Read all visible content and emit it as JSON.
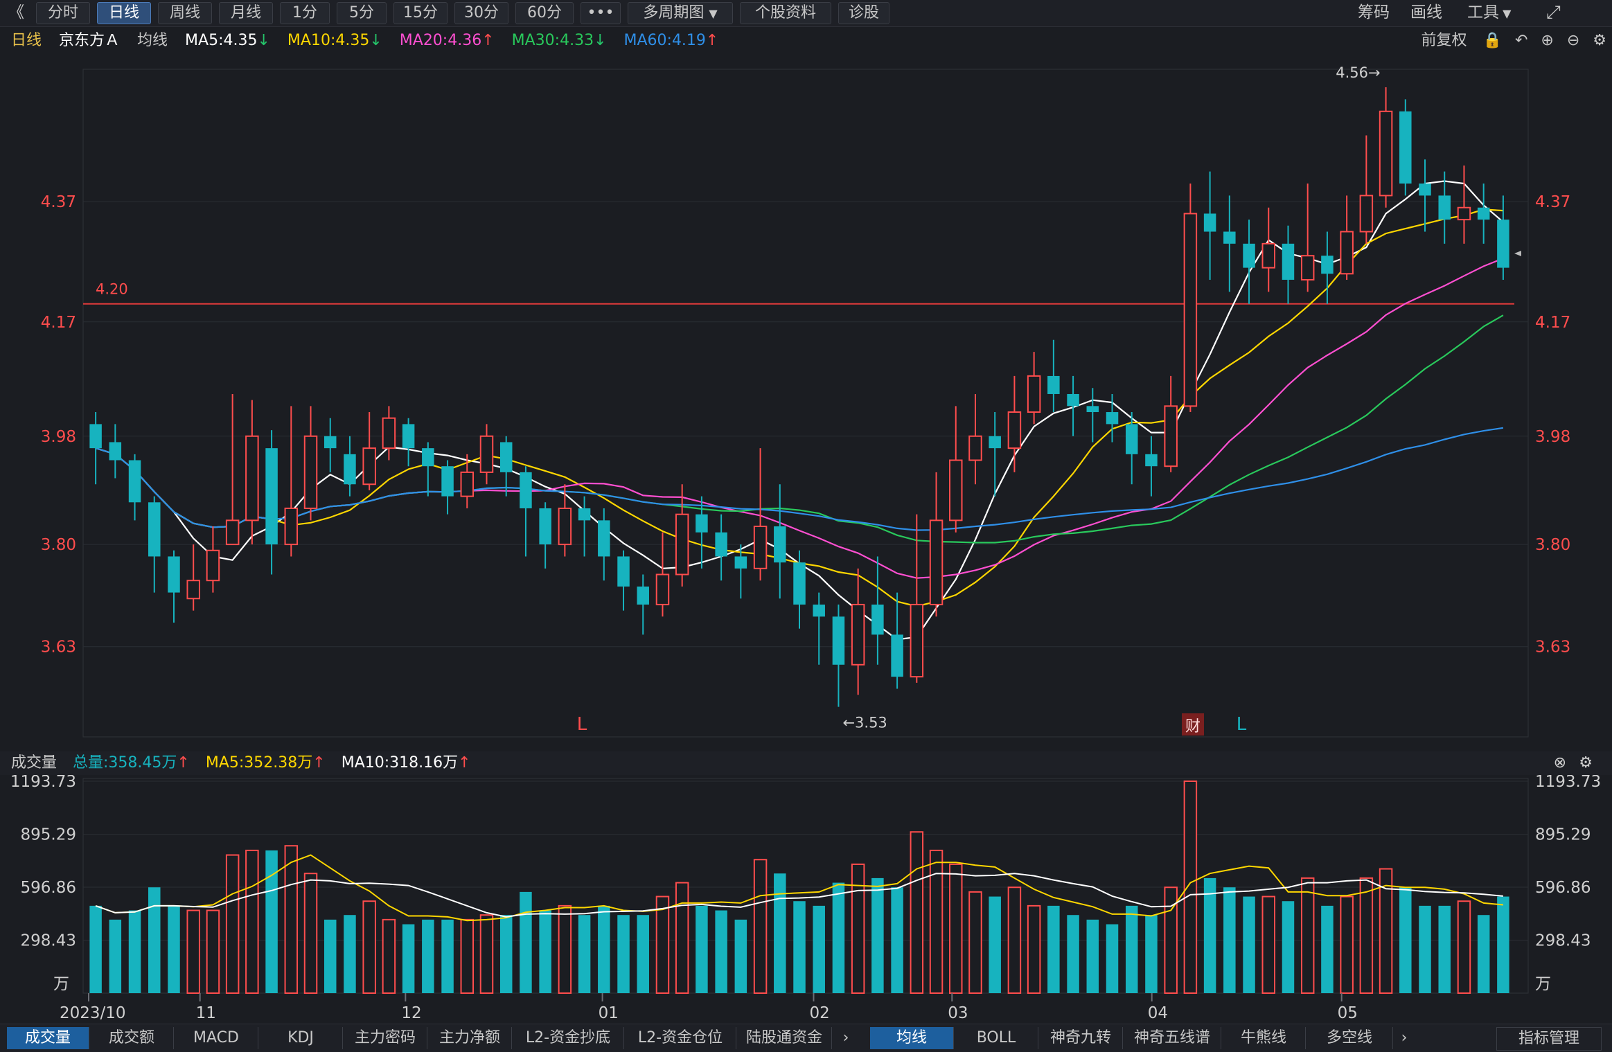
{
  "toolbar": {
    "back": "《",
    "periods": [
      "分时",
      "日线",
      "周线",
      "月线",
      "1分",
      "5分",
      "15分",
      "30分",
      "60分"
    ],
    "active_period": "日线",
    "more": "•••",
    "multi_period": "多周期图",
    "stock_info": "个股资料",
    "diagnose": "诊股",
    "chips": "筹码",
    "draw": "画线",
    "tools": "工具"
  },
  "info": {
    "period": "日线",
    "stock_name": "京东方Ａ",
    "ma_label": "均线",
    "ma5": "MA5:4.35",
    "ma10": "MA10:4.35",
    "ma20": "MA20:4.36",
    "ma30": "MA30:4.33",
    "ma60": "MA60:4.19",
    "adjust": "前复权"
  },
  "volume_info": {
    "label": "成交量",
    "total": "总量:358.45万",
    "ma5": "MA5:352.38万",
    "ma10": "MA10:318.16万"
  },
  "bottom_tabs_left": [
    "成交量",
    "成交额",
    "MACD",
    "KDJ",
    "主力密码",
    "主力净额",
    "L2-资金抄底",
    "L2-资金仓位",
    "陆股通资金"
  ],
  "bottom_tabs_right": [
    "均线",
    "BOLL",
    "神奇九转",
    "神奇五线谱",
    "牛熊线",
    "多空线"
  ],
  "indicator_manage": "指标管理",
  "colors": {
    "up": "#ff4d4d",
    "down": "#17b3bf",
    "ma5": "#ffffff",
    "ma10": "#ffd700",
    "ma20": "#ff4fd1",
    "ma30": "#29c95c",
    "ma60": "#2f8fe8",
    "hline": "#e03a3a"
  },
  "chart_data": {
    "type": "candlestick",
    "y_ticks": [
      "4.37",
      "4.17",
      "3.98",
      "3.80",
      "3.63"
    ],
    "ylim": [
      3.48,
      4.59
    ],
    "hline": {
      "value": 4.2,
      "label": "4.20"
    },
    "high_mark": "4.56→",
    "low_mark": "←3.53",
    "markers": {
      "l1": "L",
      "cai": "财",
      "l2": "L"
    },
    "x_ticks": [
      "2023/10",
      "11",
      "12",
      "01",
      "02",
      "03",
      "04",
      "05"
    ],
    "candles_ohlc_approx": [
      [
        4.0,
        3.96,
        4.02,
        3.9
      ],
      [
        3.97,
        3.94,
        4.0,
        3.91
      ],
      [
        3.94,
        3.87,
        3.95,
        3.84
      ],
      [
        3.87,
        3.78,
        3.88,
        3.72
      ],
      [
        3.78,
        3.72,
        3.79,
        3.67
      ],
      [
        3.71,
        3.74,
        3.8,
        3.69
      ],
      [
        3.74,
        3.79,
        3.83,
        3.72
      ],
      [
        3.8,
        3.84,
        4.05,
        3.82
      ],
      [
        3.84,
        3.98,
        4.04,
        3.8
      ],
      [
        3.96,
        3.8,
        3.99,
        3.75
      ],
      [
        3.8,
        3.86,
        4.03,
        3.78
      ],
      [
        3.86,
        3.98,
        4.03,
        3.84
      ],
      [
        3.98,
        3.96,
        4.01,
        3.92
      ],
      [
        3.95,
        3.9,
        3.98,
        3.88
      ],
      [
        3.9,
        3.96,
        4.02,
        3.89
      ],
      [
        3.96,
        4.01,
        4.03,
        3.94
      ],
      [
        4.0,
        3.96,
        4.01,
        3.93
      ],
      [
        3.96,
        3.93,
        3.97,
        3.88
      ],
      [
        3.93,
        3.88,
        3.94,
        3.85
      ],
      [
        3.88,
        3.92,
        3.95,
        3.86
      ],
      [
        3.92,
        3.98,
        4.0,
        3.9
      ],
      [
        3.97,
        3.92,
        3.98,
        3.88
      ],
      [
        3.92,
        3.86,
        3.93,
        3.78
      ],
      [
        3.86,
        3.8,
        3.87,
        3.76
      ],
      [
        3.8,
        3.86,
        3.9,
        3.78
      ],
      [
        3.86,
        3.84,
        3.88,
        3.78
      ],
      [
        3.84,
        3.78,
        3.86,
        3.74
      ],
      [
        3.78,
        3.73,
        3.79,
        3.69
      ],
      [
        3.73,
        3.7,
        3.75,
        3.65
      ],
      [
        3.7,
        3.75,
        3.82,
        3.68
      ],
      [
        3.75,
        3.85,
        3.9,
        3.73
      ],
      [
        3.85,
        3.82,
        3.88,
        3.76
      ],
      [
        3.82,
        3.78,
        3.85,
        3.74
      ],
      [
        3.78,
        3.76,
        3.8,
        3.71
      ],
      [
        3.76,
        3.83,
        3.96,
        3.74
      ],
      [
        3.83,
        3.77,
        3.9,
        3.71
      ],
      [
        3.77,
        3.7,
        3.79,
        3.66
      ],
      [
        3.7,
        3.68,
        3.72,
        3.6
      ],
      [
        3.68,
        3.6,
        3.7,
        3.53
      ],
      [
        3.6,
        3.7,
        3.76,
        3.55
      ],
      [
        3.7,
        3.65,
        3.78,
        3.6
      ],
      [
        3.65,
        3.58,
        3.72,
        3.56
      ],
      [
        3.58,
        3.7,
        3.85,
        3.57
      ],
      [
        3.7,
        3.84,
        3.92,
        3.68
      ],
      [
        3.84,
        3.94,
        4.03,
        3.82
      ],
      [
        3.94,
        3.98,
        4.05,
        3.9
      ],
      [
        3.98,
        3.96,
        4.02,
        3.88
      ],
      [
        3.96,
        4.02,
        4.08,
        3.92
      ],
      [
        4.02,
        4.08,
        4.12,
        4.0
      ],
      [
        4.08,
        4.05,
        4.14,
        4.02
      ],
      [
        4.05,
        4.03,
        4.08,
        3.98
      ],
      [
        4.03,
        4.02,
        4.06,
        3.97
      ],
      [
        4.02,
        4.0,
        4.05,
        3.97
      ],
      [
        4.0,
        3.95,
        4.02,
        3.9
      ],
      [
        3.95,
        3.93,
        3.98,
        3.88
      ],
      [
        3.93,
        4.03,
        4.08,
        3.92
      ],
      [
        4.03,
        4.35,
        4.4,
        4.02
      ],
      [
        4.35,
        4.32,
        4.42,
        4.24
      ],
      [
        4.32,
        4.3,
        4.38,
        4.22
      ],
      [
        4.3,
        4.26,
        4.34,
        4.2
      ],
      [
        4.26,
        4.3,
        4.36,
        4.22
      ],
      [
        4.3,
        4.24,
        4.33,
        4.2
      ],
      [
        4.24,
        4.28,
        4.4,
        4.22
      ],
      [
        4.28,
        4.25,
        4.32,
        4.2
      ],
      [
        4.25,
        4.32,
        4.38,
        4.24
      ],
      [
        4.32,
        4.38,
        4.48,
        4.3
      ],
      [
        4.38,
        4.52,
        4.56,
        4.36
      ],
      [
        4.52,
        4.4,
        4.54,
        4.38
      ],
      [
        4.4,
        4.38,
        4.44,
        4.32
      ],
      [
        4.38,
        4.34,
        4.42,
        4.3
      ],
      [
        4.34,
        4.36,
        4.43,
        4.3
      ],
      [
        4.36,
        4.34,
        4.4,
        4.3
      ],
      [
        4.34,
        4.26,
        4.38,
        4.24
      ]
    ],
    "volume_ticks": [
      "1193.73",
      "895.29",
      "596.86",
      "298.43"
    ],
    "volume_unit": "万",
    "volume_max": 1193.73
  }
}
